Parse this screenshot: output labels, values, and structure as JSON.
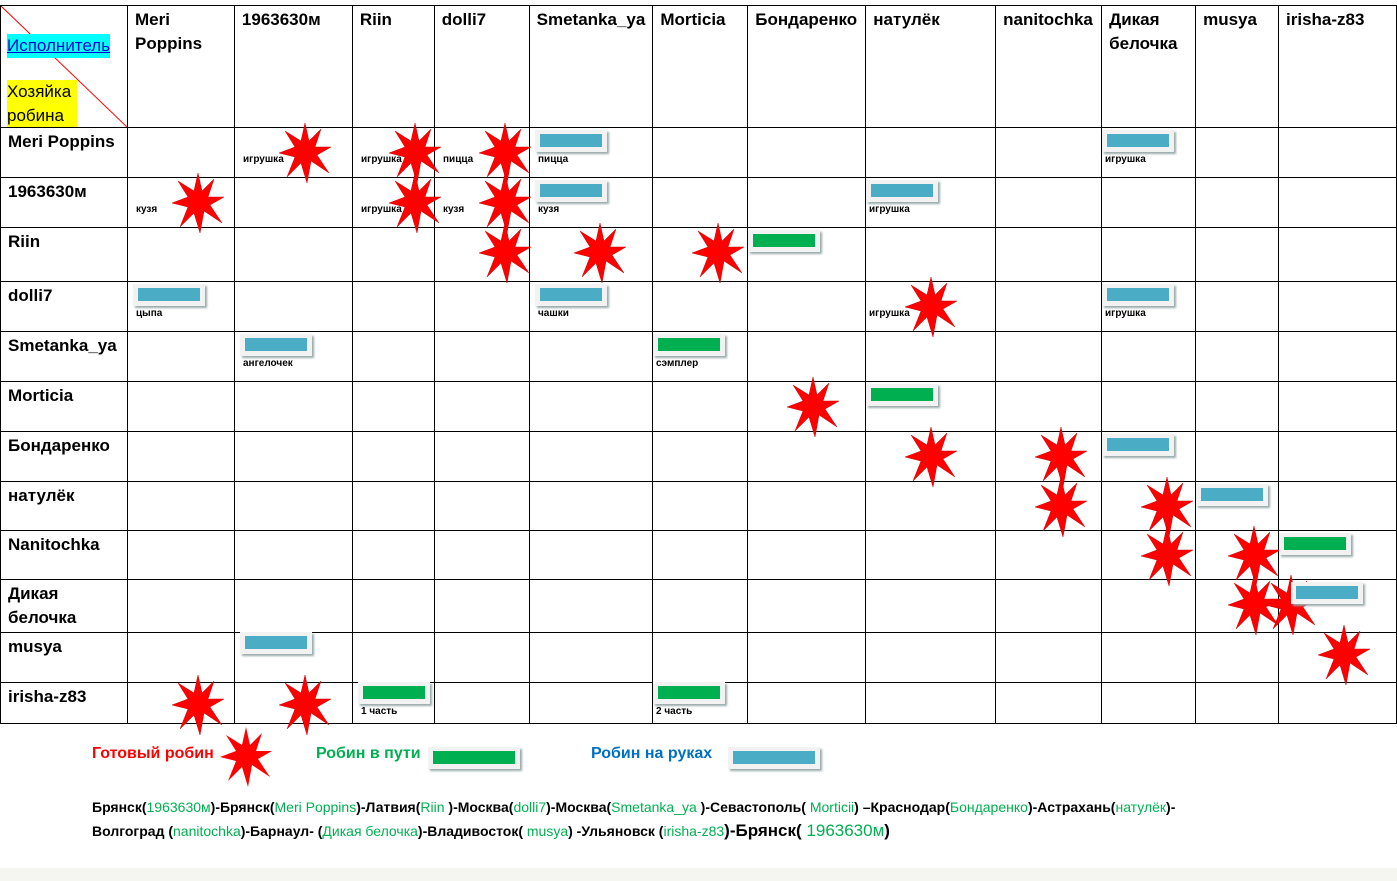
{
  "corner": {
    "executor": "Исполнитель",
    "owner": "Хозяйка робина"
  },
  "columns": [
    "Meri Poppins",
    "1963630м",
    "Riin",
    "dolli7",
    "Smetanka_ya",
    "Morticia",
    "Бондаренко",
    "натулёк",
    "nanitochka",
    "Дикая белочка",
    "musya",
    "irisha-z83"
  ],
  "rows": [
    "Meri Poppins",
    "1963630м",
    "Riin",
    "dolli7",
    "Smetanka_ya",
    "Morticia",
    "Бондаренко",
    "натулёк",
    "Nanitochka",
    "Дикая белочка",
    "musya",
    "irisha-z83"
  ],
  "marks": [
    [
      {
        "c": 2,
        "t": "star",
        "l": "игрушка"
      },
      {
        "c": 3,
        "t": "star",
        "l": "игрушка"
      },
      {
        "c": 4,
        "t": "star",
        "l": "пицца"
      },
      {
        "c": 5,
        "t": "blue",
        "l": "пицца"
      },
      {
        "c": 10,
        "t": "blue",
        "l": "игрушка"
      }
    ],
    [
      {
        "c": 1,
        "t": "star",
        "l": "кузя"
      },
      {
        "c": 3,
        "t": "star",
        "l": "игрушка"
      },
      {
        "c": 4,
        "t": "star",
        "l": "кузя"
      },
      {
        "c": 5,
        "t": "blue",
        "l": "кузя"
      },
      {
        "c": 8,
        "t": "blue",
        "l": "игрушка"
      }
    ],
    [
      {
        "c": 4,
        "t": "star"
      },
      {
        "c": 5,
        "t": "star"
      },
      {
        "c": 6,
        "t": "star"
      },
      {
        "c": 7,
        "t": "green"
      }
    ],
    [
      {
        "c": 1,
        "t": "blue",
        "l": "цыпа"
      },
      {
        "c": 5,
        "t": "blue",
        "l": "чашки"
      },
      {
        "c": 8,
        "t": "star",
        "l": "игрушка"
      },
      {
        "c": 10,
        "t": "blue",
        "l": "игрушка"
      }
    ],
    [
      {
        "c": 2,
        "t": "blue",
        "l": "ангелочек"
      },
      {
        "c": 6,
        "t": "green",
        "l": "сэмплер"
      }
    ],
    [
      {
        "c": 7,
        "t": "star"
      },
      {
        "c": 8,
        "t": "green"
      }
    ],
    [
      {
        "c": 8,
        "t": "star"
      },
      {
        "c": 9,
        "t": "star"
      },
      {
        "c": 10,
        "t": "blue"
      }
    ],
    [
      {
        "c": 9,
        "t": "star"
      },
      {
        "c": 10,
        "t": "star"
      },
      {
        "c": 11,
        "t": "blue"
      }
    ],
    [
      {
        "c": 10,
        "t": "star"
      },
      {
        "c": 11,
        "t": "star"
      },
      {
        "c": 12,
        "t": "green"
      }
    ],
    [
      {
        "c": 11,
        "t": "star"
      },
      {
        "c": 12,
        "t": "star"
      },
      {
        "c": 12,
        "t": "blue"
      }
    ],
    [
      {
        "c": 2,
        "t": "blue"
      },
      {
        "c": 12,
        "t": "star"
      }
    ],
    [
      {
        "c": 1,
        "t": "star"
      },
      {
        "c": 2,
        "t": "star"
      },
      {
        "c": 3,
        "t": "green",
        "l": "1 часть"
      },
      {
        "c": 6,
        "t": "green",
        "l": "2 часть"
      }
    ]
  ],
  "legend": {
    "ready": "Готовый робин",
    "transit": "Робин в пути",
    "hands": "Робин на руках"
  },
  "colors": {
    "red": "#ff0000",
    "green": "#00b050",
    "blue": "#4bacc6",
    "legendBlue": "#0070c0"
  },
  "route": [
    [
      "Брянск(",
      0
    ],
    [
      "1963630м",
      1
    ],
    [
      ")-Брянск(",
      0
    ],
    [
      "Meri Poppins",
      1
    ],
    [
      ")-Латвия(",
      0
    ],
    [
      "Riin ",
      1
    ],
    [
      ")-Москва(",
      0
    ],
    [
      "dolli7",
      1
    ],
    [
      ")-Москва(",
      0
    ],
    [
      "Smetanka_ya ",
      1
    ],
    [
      ")-Севастополь( ",
      0
    ],
    [
      "Morticii",
      1
    ],
    [
      ") –Краснодар(",
      0
    ],
    [
      "Бондаренко",
      1
    ],
    [
      ")-Астрахань(",
      0
    ],
    [
      "натулёк",
      1
    ],
    [
      ")-",
      0
    ],
    [
      "Волгоград (",
      0
    ],
    [
      "nanitochka",
      1
    ],
    [
      ")-Барнаул- (",
      0
    ],
    [
      "Дикая белочка",
      1
    ],
    [
      ")-Владивосток( ",
      0
    ],
    [
      "musya",
      1
    ],
    [
      ") -Ульяновск (",
      0
    ],
    [
      "irisha-z83",
      1
    ],
    [
      ")-Брянск( ",
      2
    ],
    [
      "1963630м",
      3
    ],
    [
      ")",
      2
    ]
  ]
}
